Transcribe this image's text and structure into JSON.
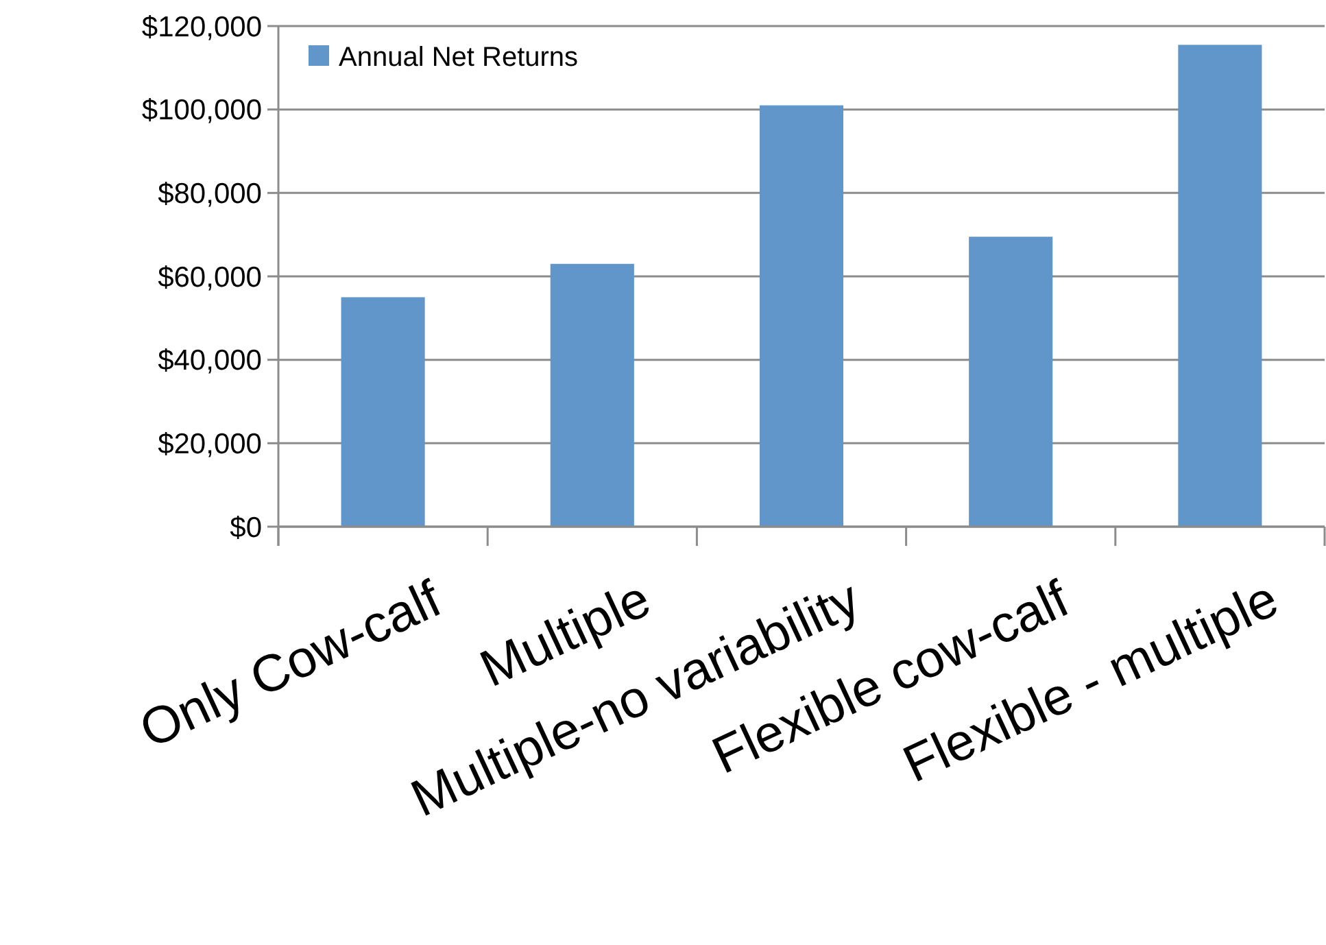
{
  "chart_data": {
    "type": "bar",
    "categories": [
      "Only Cow-calf",
      "Multiple",
      "Multiple-no variability",
      "Flexible cow-calf",
      "Flexible - multiple"
    ],
    "series": [
      {
        "name": "Annual Net Returns",
        "color": "#6096c9",
        "values": [
          55000,
          63000,
          101000,
          69500,
          115500
        ]
      }
    ],
    "ylim": [
      0,
      120000
    ],
    "yticks": [
      {
        "value": 0,
        "label": "$0"
      },
      {
        "value": 20000,
        "label": "$20,000"
      },
      {
        "value": 40000,
        "label": "$40,000"
      },
      {
        "value": 60000,
        "label": "$60,000"
      },
      {
        "value": 80000,
        "label": "$80,000"
      },
      {
        "value": 100000,
        "label": "$100,000"
      },
      {
        "value": 120000,
        "label": "$120,000"
      }
    ],
    "grid": "y",
    "legend": "top left"
  }
}
